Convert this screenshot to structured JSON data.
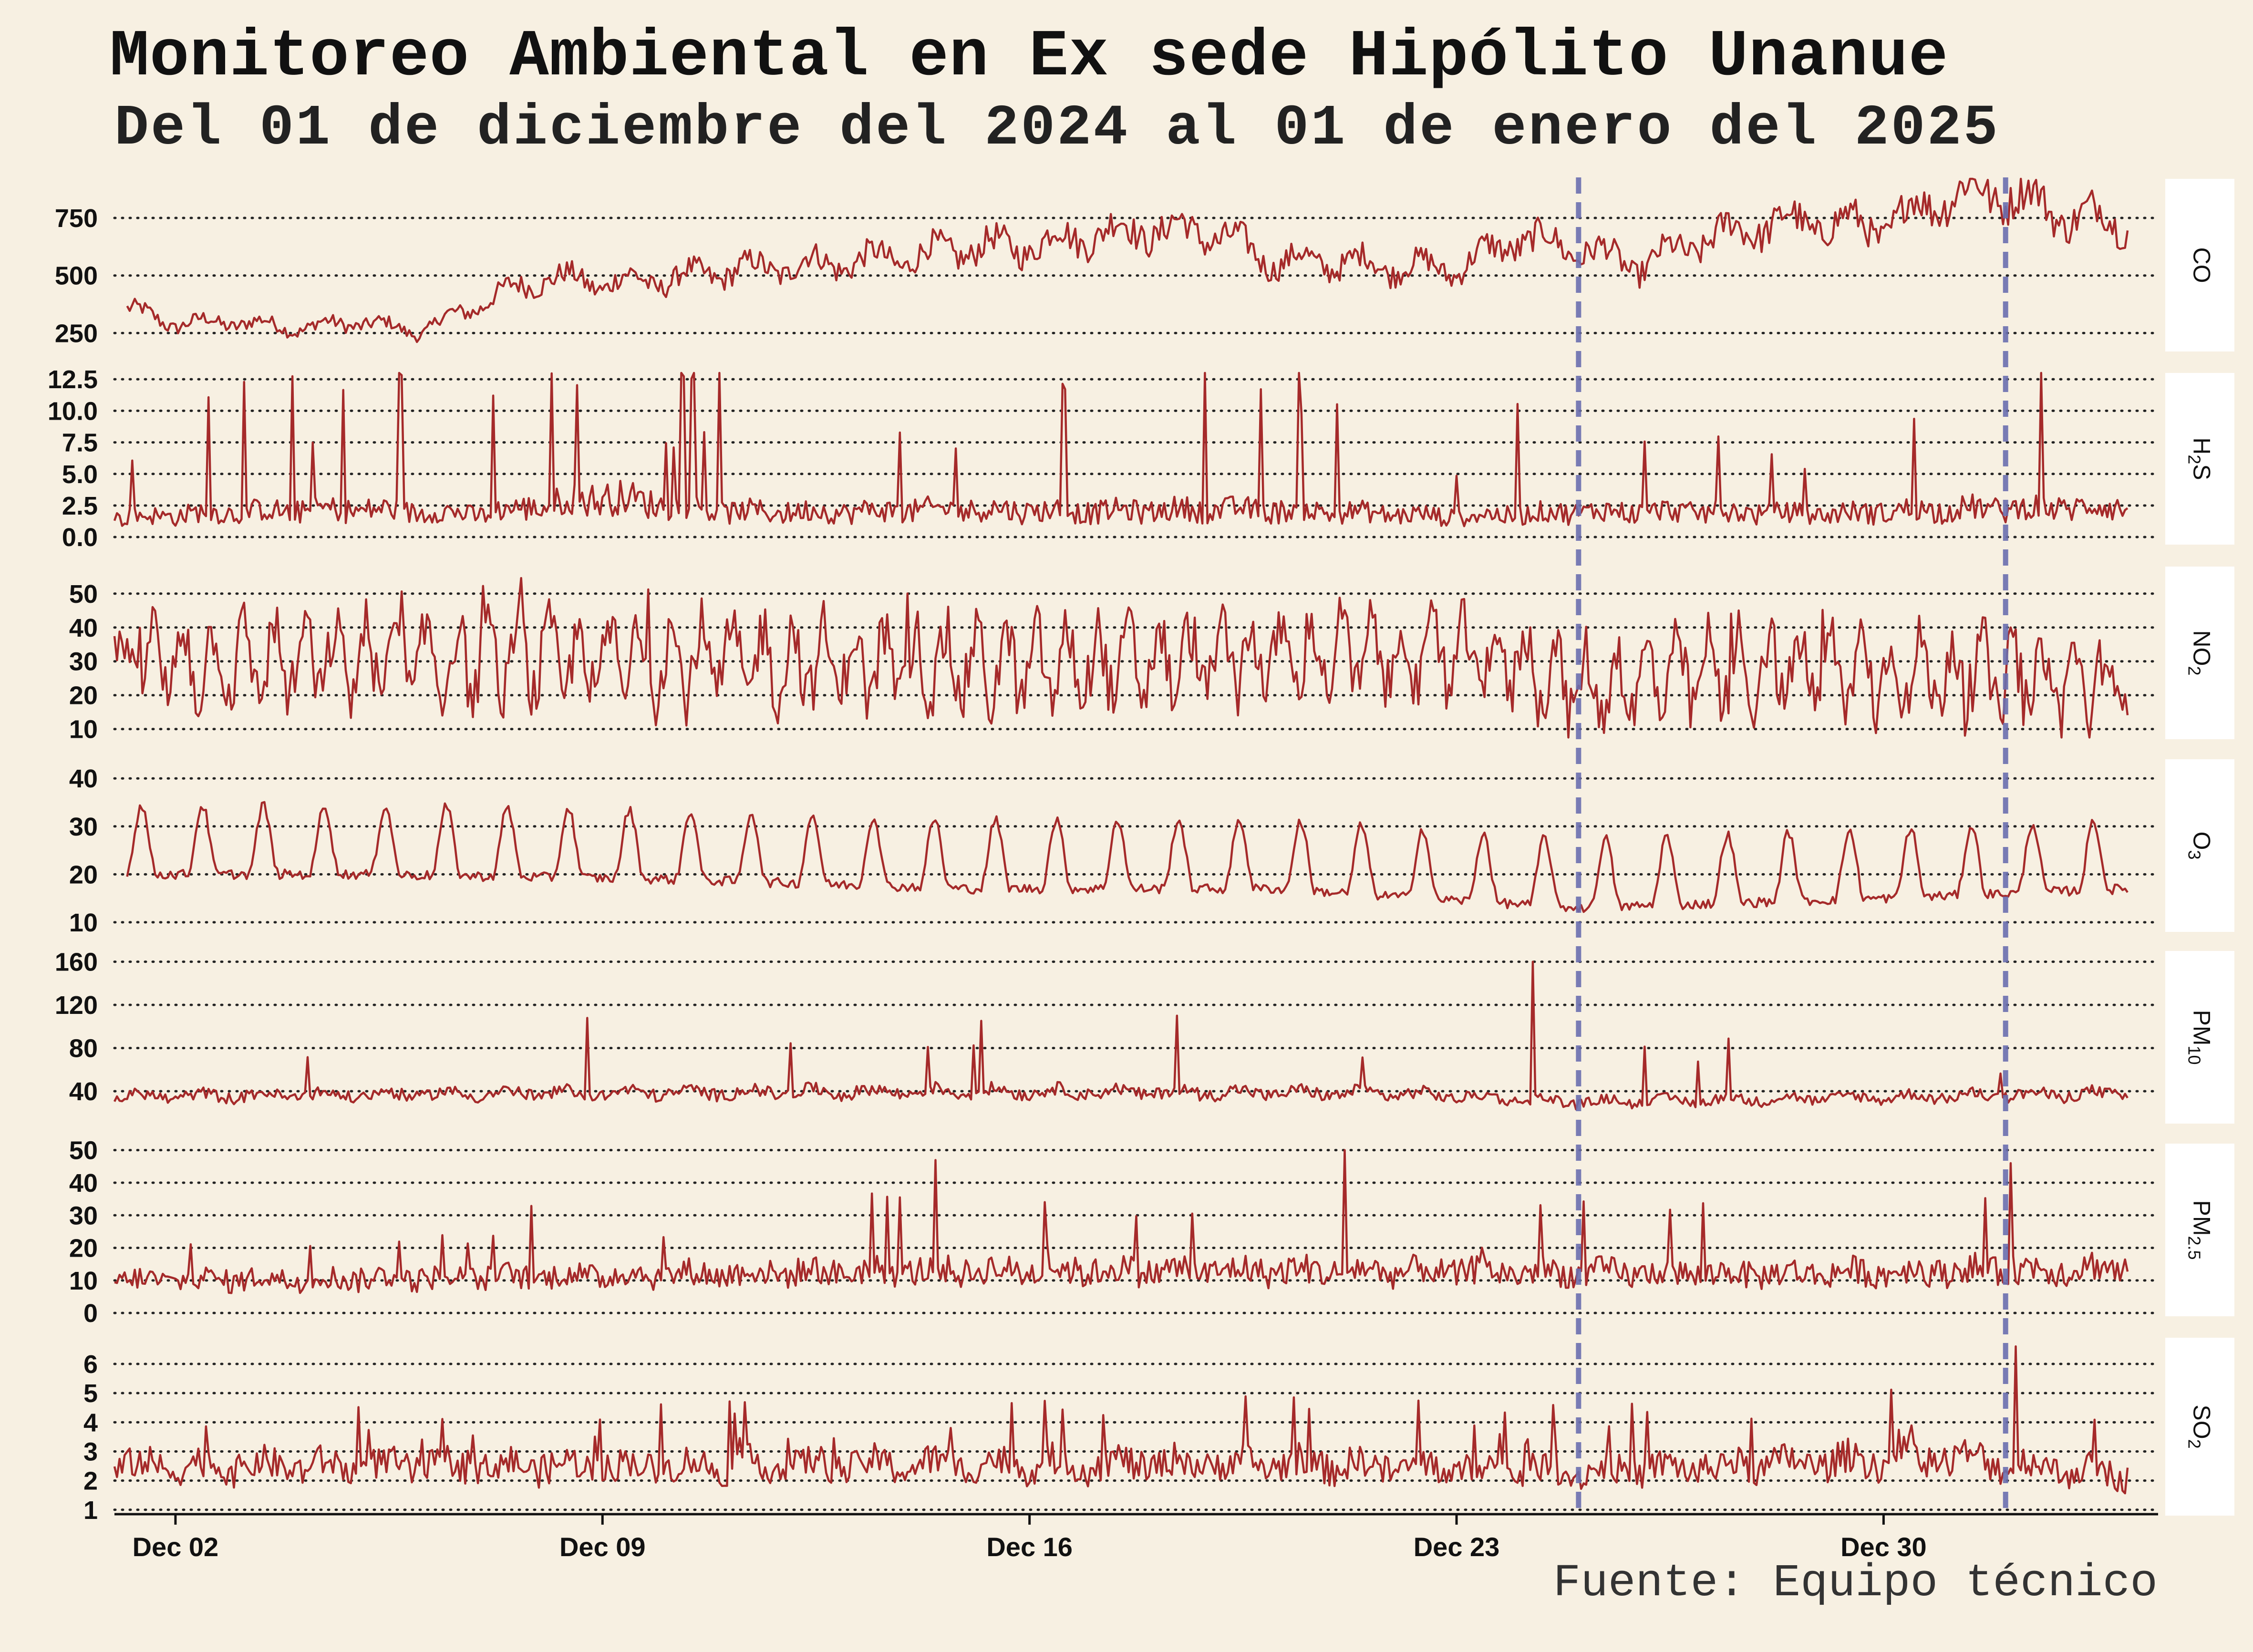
{
  "title": "Monitoreo Ambiental en Ex sede Hipólito Unanue",
  "subtitle": "Del 01 de diciembre del 2024 al 01 de enero del 2025",
  "source": "Fuente: Equipo técnico",
  "colors": {
    "background": "#f7f0e2",
    "line": "#a52a2a",
    "event_line": "#6b6fb0",
    "strip": "#ffffff",
    "grid": "#222222"
  },
  "chart_data": {
    "type": "line",
    "x_axis": {
      "type": "date",
      "range": [
        "2024-12-01T00:00",
        "2025-01-03T12:00"
      ],
      "data_range": [
        "2024-12-01T00:00",
        "2025-01-03T00:00"
      ],
      "ticks": [
        "2024-12-02",
        "2024-12-09",
        "2024-12-16",
        "2024-12-23",
        "2024-12-30"
      ],
      "tick_labels": [
        "Dec 02",
        "Dec 09",
        "Dec 16",
        "Dec 23",
        "Dec 30"
      ]
    },
    "grid": "horizontal dotted",
    "event_lines": [
      "2024-12-25",
      "2025-01-01"
    ],
    "panels": [
      {
        "strip_main": "CO",
        "strip_sub": "",
        "ylim": [
          170,
          920
        ],
        "yticks": [
          250,
          500,
          750
        ],
        "ytick_labels": [
          "250",
          "500",
          "750"
        ],
        "start": "2024-12-01T05:00",
        "volatility": 0.1,
        "spike_prob": 0.0,
        "spike_scale": 0,
        "points": [
          [
            "2024-12-01",
            370
          ],
          [
            "2024-12-02",
            290
          ],
          [
            "2024-12-03",
            300
          ],
          [
            "2024-12-04",
            270
          ],
          [
            "2024-12-05",
            300
          ],
          [
            "2024-12-06",
            255
          ],
          [
            "2024-12-07",
            380
          ],
          [
            "2024-12-08",
            490
          ],
          [
            "2024-12-09",
            470
          ],
          [
            "2024-12-10",
            480
          ],
          [
            "2024-12-11",
            520
          ],
          [
            "2024-12-12",
            540
          ],
          [
            "2024-12-13",
            560
          ],
          [
            "2024-12-14",
            580
          ],
          [
            "2024-12-15",
            620
          ],
          [
            "2024-12-16",
            630
          ],
          [
            "2024-12-17",
            680
          ],
          [
            "2024-12-18",
            700
          ],
          [
            "2024-12-19",
            690
          ],
          [
            "2024-12-20",
            560
          ],
          [
            "2024-12-21",
            560
          ],
          [
            "2024-12-22",
            540
          ],
          [
            "2024-12-23",
            530
          ],
          [
            "2024-12-24",
            660
          ],
          [
            "2024-12-25",
            620
          ],
          [
            "2024-12-26",
            540
          ],
          [
            "2024-12-27",
            650
          ],
          [
            "2024-12-28",
            720
          ],
          [
            "2024-12-29",
            730
          ],
          [
            "2024-12-30",
            710
          ],
          [
            "2024-12-31",
            850
          ],
          [
            "2025-01-01",
            860
          ],
          [
            "2025-01-02",
            760
          ],
          [
            "2025-01-03",
            740
          ]
        ]
      },
      {
        "strip_main": "H",
        "strip_sub": "2",
        "strip_tail": "S",
        "ylim": [
          -0.6,
          13.0
        ],
        "yticks": [
          0,
          2.5,
          5,
          7.5,
          10,
          12.5
        ],
        "ytick_labels": [
          "0.0",
          "2.5",
          "5.0",
          "7.5",
          "10.0",
          "12.5"
        ],
        "start": "2024-12-01T00:00",
        "volatility": 0.45,
        "spike_prob": 0.05,
        "spike_scale": 4.0,
        "points": [
          [
            "2024-12-01",
            1.5
          ],
          [
            "2024-12-03",
            2.0
          ],
          [
            "2024-12-05",
            2.2
          ],
          [
            "2024-12-07",
            1.8
          ],
          [
            "2024-12-09",
            3.2
          ],
          [
            "2024-12-11",
            2.0
          ],
          [
            "2024-12-13",
            2.0
          ],
          [
            "2024-12-15",
            2.2
          ],
          [
            "2024-12-17",
            2.0
          ],
          [
            "2024-12-19",
            2.2
          ],
          [
            "2024-12-21",
            2.0
          ],
          [
            "2024-12-23",
            1.6
          ],
          [
            "2024-12-25",
            2.0
          ],
          [
            "2024-12-27",
            2.0
          ],
          [
            "2024-12-29",
            1.8
          ],
          [
            "2024-12-31",
            2.2
          ],
          [
            "2025-01-03",
            2.4
          ]
        ]
      },
      {
        "strip_main": "NO",
        "strip_sub": "2",
        "ylim": [
          7,
          58
        ],
        "yticks": [
          10,
          20,
          30,
          40,
          50
        ],
        "ytick_labels": [
          "10",
          "20",
          "30",
          "40",
          "50"
        ],
        "start": "2024-12-01T00:00",
        "volatility": 0.3,
        "spike_prob": 0.02,
        "spike_scale": 0.4,
        "points": [
          [
            "2024-12-01",
            30
          ],
          [
            "2024-12-06",
            30
          ],
          [
            "2024-12-11",
            30
          ],
          [
            "2024-12-16",
            28
          ],
          [
            "2024-12-21",
            32
          ],
          [
            "2024-12-24",
            30
          ],
          [
            "2024-12-25",
            22
          ],
          [
            "2024-12-28",
            28
          ],
          [
            "2024-12-31",
            26
          ],
          [
            "2025-01-03",
            23
          ]
        ]
      },
      {
        "strip_main": "O",
        "strip_sub": "3",
        "ylim": [
          8,
          44
        ],
        "yticks": [
          10,
          20,
          30,
          40
        ],
        "ytick_labels": [
          "10",
          "20",
          "30",
          "40"
        ],
        "start": "2024-12-01T05:00",
        "volatility": 0.06,
        "spike_prob": 0.0,
        "spike_scale": 0,
        "points": [
          [
            "2024-12-01",
            24
          ],
          [
            "2024-12-05",
            24
          ],
          [
            "2024-12-10",
            23
          ],
          [
            "2024-12-15",
            21
          ],
          [
            "2024-12-20",
            21
          ],
          [
            "2024-12-25",
            17
          ],
          [
            "2024-12-30",
            19
          ],
          [
            "2025-01-03",
            21
          ]
        ]
      },
      {
        "strip_main": "PM",
        "strip_sub": "10",
        "ylim": [
          10,
          170
        ],
        "yticks": [
          40,
          80,
          120,
          160
        ],
        "ytick_labels": [
          "40",
          "80",
          "120",
          "160"
        ],
        "start": "2024-12-01T00:00",
        "volatility": 0.15,
        "spike_prob": 0.01,
        "spike_scale": 1.2,
        "points": [
          [
            "2024-12-01",
            35
          ],
          [
            "2024-12-08",
            38
          ],
          [
            "2024-12-15",
            40
          ],
          [
            "2024-12-22",
            38
          ],
          [
            "2024-12-25",
            30
          ],
          [
            "2025-01-03",
            38
          ]
        ],
        "spikes": [
          [
            "2024-12-24T06:00",
            160
          ],
          [
            "2024-12-18T10:00",
            110
          ]
        ]
      },
      {
        "strip_main": "PM",
        "strip_sub": "2.5",
        "ylim": [
          -1,
          52
        ],
        "yticks": [
          0,
          10,
          20,
          30,
          40,
          50
        ],
        "ytick_labels": [
          "0",
          "10",
          "20",
          "30",
          "40",
          "50"
        ],
        "start": "2024-12-01T00:00",
        "volatility": 0.35,
        "spike_prob": 0.03,
        "spike_scale": 1.5,
        "points": [
          [
            "2024-12-01",
            10
          ],
          [
            "2024-12-07",
            11
          ],
          [
            "2024-12-14",
            13
          ],
          [
            "2024-12-21",
            13
          ],
          [
            "2024-12-28",
            12
          ],
          [
            "2025-01-03",
            14
          ]
        ],
        "spikes": [
          [
            "2024-12-21T04:00",
            50
          ],
          [
            "2025-01-01T02:00",
            46
          ]
        ]
      },
      {
        "strip_main": "SO",
        "strip_sub": "2",
        "ylim": [
          0.8,
          6.9
        ],
        "yticks": [
          1,
          2,
          3,
          4,
          5,
          6
        ],
        "ytick_labels": [
          "1",
          "2",
          "3",
          "4",
          "5",
          "6"
        ],
        "start": "2024-12-01T00:00",
        "volatility": 0.22,
        "spike_prob": 0.03,
        "spike_scale": 0.6,
        "points": [
          [
            "2024-12-01",
            2.5
          ],
          [
            "2024-12-10",
            2.5
          ],
          [
            "2024-12-20",
            2.6
          ],
          [
            "2024-12-25",
            2.3
          ],
          [
            "2024-12-31",
            2.8
          ],
          [
            "2025-01-03",
            2.2
          ]
        ],
        "spikes": [
          [
            "2025-01-01T04:00",
            6.6
          ]
        ]
      }
    ]
  }
}
